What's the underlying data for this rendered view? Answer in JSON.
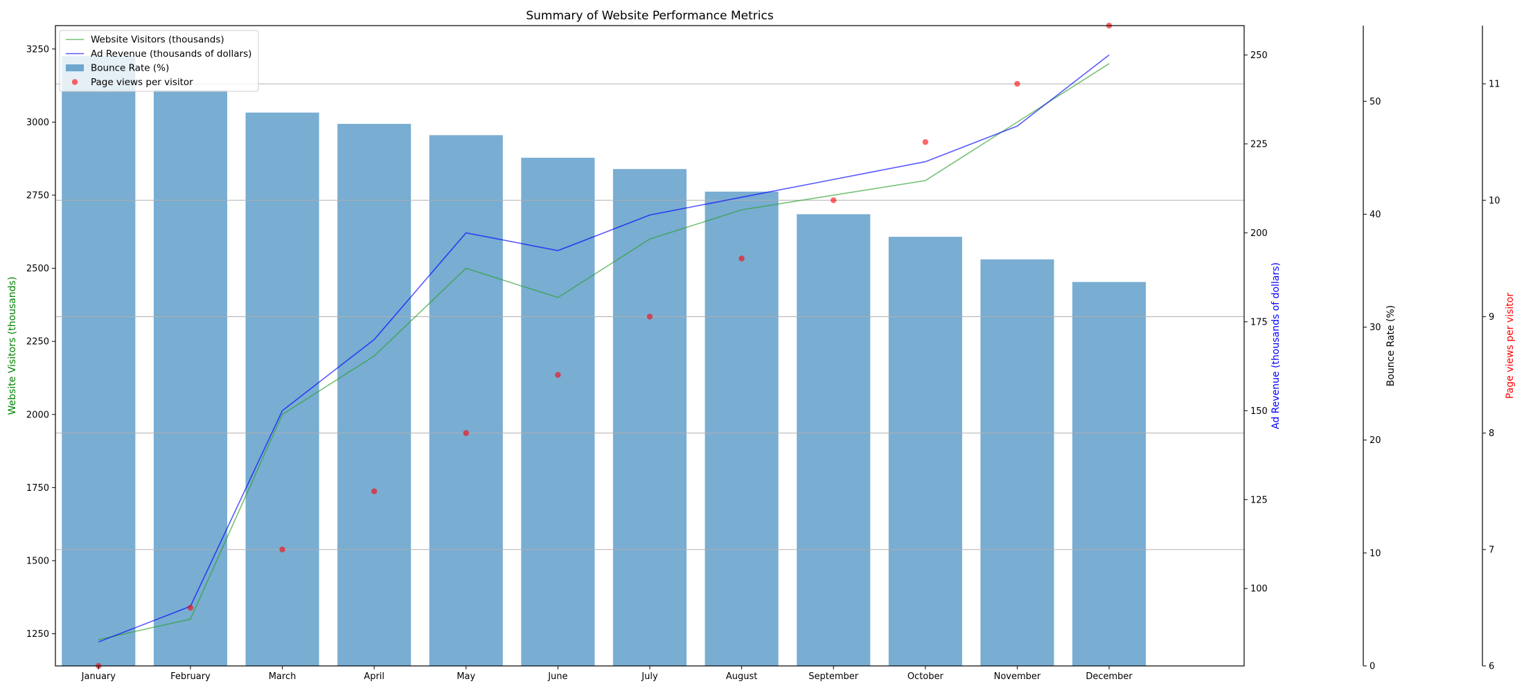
{
  "chart_data": {
    "type": "bar",
    "title": "Summary of Website Performance Metrics",
    "categories": [
      "January",
      "February",
      "March",
      "April",
      "May",
      "June",
      "July",
      "August",
      "September",
      "October",
      "November",
      "December"
    ],
    "series": [
      {
        "name": "Website Visitors (thousands)",
        "kind": "line",
        "axis": "visitors",
        "color": "#2ca02c",
        "values": [
          1230,
          1300,
          2000,
          2200,
          2500,
          2400,
          2600,
          2700,
          2750,
          2800,
          3000,
          3200
        ]
      },
      {
        "name": "Ad Revenue (thousands of dollars)",
        "kind": "line",
        "axis": "revenue",
        "color": "#0000ff",
        "values": [
          85,
          95,
          150,
          170,
          200,
          195,
          205,
          210,
          215,
          220,
          230,
          250
        ]
      },
      {
        "name": "Bounce Rate (%)",
        "kind": "bar",
        "axis": "bounce",
        "color": "#1f77b4",
        "values": [
          54,
          51,
          49,
          48,
          47,
          45,
          44,
          42,
          40,
          38,
          36,
          34
        ]
      },
      {
        "name": "Page views per visitor",
        "kind": "scatter",
        "axis": "pageviews",
        "color": "#ff0000",
        "values": [
          6.0,
          6.5,
          7.0,
          7.5,
          8.0,
          8.5,
          9.0,
          9.5,
          10.0,
          10.5,
          11.0,
          11.5
        ]
      }
    ],
    "axes": {
      "visitors": {
        "label": "Website Visitors (thousands)",
        "color": "#008000",
        "ylim": [
          1140,
          3330
        ],
        "ticks": [
          1250,
          1500,
          1750,
          2000,
          2250,
          2500,
          2750,
          3000,
          3250
        ]
      },
      "revenue": {
        "label": "Ad Revenue (thousands of dollars)",
        "color": "#0000ff",
        "ylim": [
          78.25,
          258.25
        ],
        "ticks": [
          100,
          125,
          150,
          175,
          200,
          225,
          250
        ]
      },
      "bounce": {
        "label": "Bounce Rate (%)",
        "color": "#000000",
        "ylim": [
          0,
          56.7
        ],
        "ticks": [
          0,
          10,
          20,
          30,
          40,
          50
        ]
      },
      "pageviews": {
        "label": "Page views per visitor",
        "color": "#ff0000",
        "ylim": [
          6,
          11.5
        ],
        "ticks": [
          6,
          7,
          8,
          9,
          10,
          11
        ]
      }
    },
    "grid": "horizontal (pageviews axis)",
    "legend": "top-left"
  }
}
